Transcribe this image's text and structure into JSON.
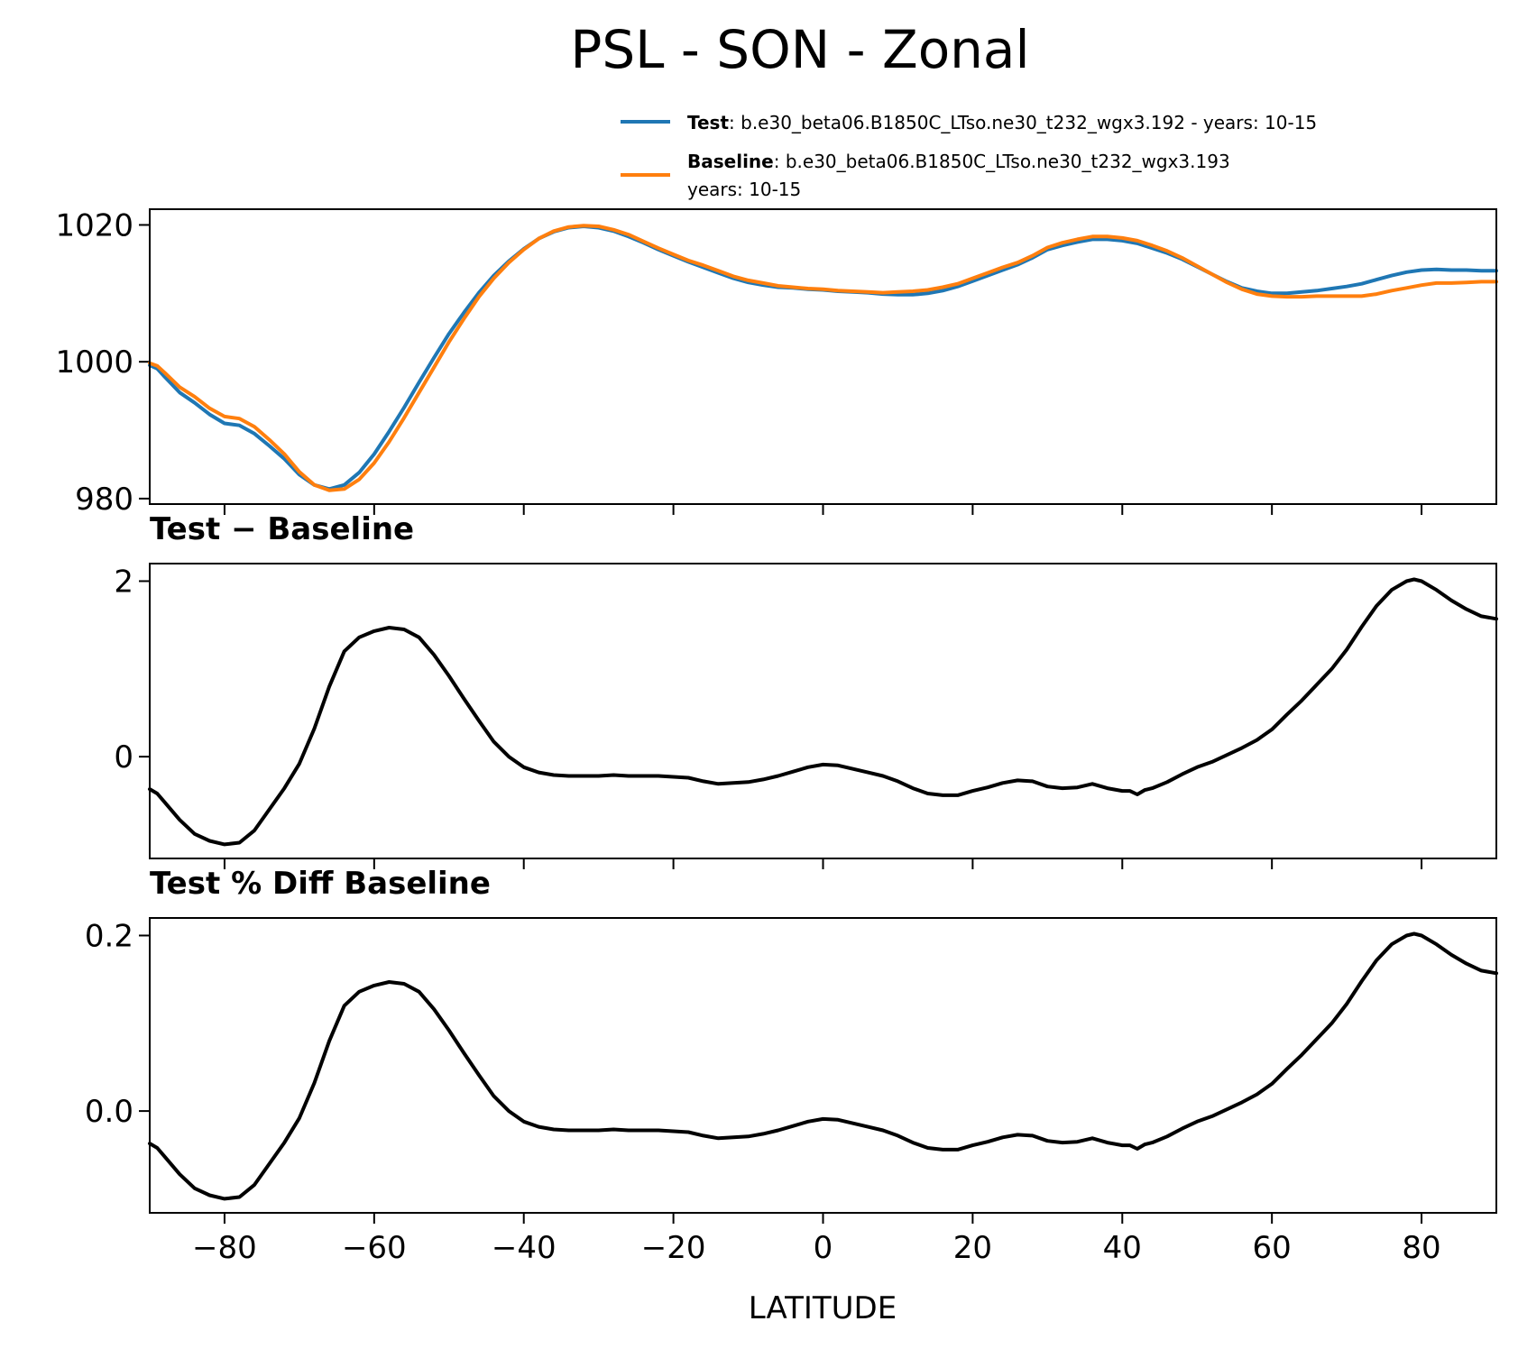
{
  "figure": {
    "title": "PSL - SON - Zonal"
  },
  "legend": {
    "entries": [
      {
        "label": "Test",
        "desc": "b.e30_beta06.B1850C_LTso.ne30_t232_wgx3.192 - years: 10-15",
        "desc2": "",
        "color": "#1f77b4"
      },
      {
        "label": "Baseline",
        "desc": "b.e30_beta06.B1850C_LTso.ne30_t232_wgx3.193",
        "desc2": "years: 10-15",
        "color": "#ff7f0e"
      }
    ]
  },
  "chart_data": [
    {
      "type": "line",
      "title": "",
      "xlabel": "",
      "ylabel": "",
      "xlim": [
        -90,
        90
      ],
      "ylim": [
        979.2,
        1022.3
      ],
      "xticks": [
        -80,
        -60,
        -40,
        -20,
        0,
        20,
        40,
        60,
        80
      ],
      "yticks": [
        980,
        1000,
        1020
      ],
      "ytick_labels": [
        "980",
        "1000",
        "1020"
      ],
      "show_xtick_labels": false,
      "grid": false,
      "legend": "top-right, outside above",
      "series": [
        {
          "name": "Test",
          "color": "#1f77b4",
          "x": [
            -90,
            -89,
            -88,
            -86,
            -84,
            -82,
            -80,
            -78,
            -76,
            -74,
            -72,
            -70,
            -68,
            -66,
            -64,
            -62,
            -60,
            -58,
            -56,
            -54,
            -52,
            -50,
            -48,
            -46,
            -44,
            -42,
            -40,
            -38,
            -36,
            -34,
            -32,
            -30,
            -28,
            -26,
            -24,
            -22,
            -20,
            -18,
            -16,
            -14,
            -12,
            -10,
            -8,
            -6,
            -4,
            -2,
            0,
            2,
            4,
            6,
            8,
            10,
            12,
            14,
            16,
            18,
            20,
            22,
            24,
            26,
            28,
            30,
            32,
            34,
            36,
            38,
            40,
            42,
            44,
            46,
            48,
            50,
            52,
            54,
            56,
            58,
            60,
            62,
            64,
            66,
            68,
            70,
            72,
            74,
            76,
            78,
            80,
            82,
            84,
            86,
            88,
            90
          ],
          "y": [
            999.5,
            999.0,
            997.8,
            995.5,
            994.0,
            992.3,
            991.0,
            990.7,
            989.5,
            987.7,
            985.8,
            983.5,
            982.0,
            981.4,
            982.0,
            983.8,
            986.5,
            989.8,
            993.3,
            997.0,
            1000.6,
            1004.1,
            1007.2,
            1010.1,
            1012.6,
            1014.7,
            1016.5,
            1018.0,
            1019.0,
            1019.6,
            1019.8,
            1019.6,
            1019.1,
            1018.3,
            1017.4,
            1016.4,
            1015.5,
            1014.6,
            1013.8,
            1013.0,
            1012.2,
            1011.6,
            1011.2,
            1010.9,
            1010.8,
            1010.6,
            1010.5,
            1010.3,
            1010.2,
            1010.1,
            1009.9,
            1009.8,
            1009.8,
            1010.0,
            1010.4,
            1011.0,
            1011.8,
            1012.6,
            1013.4,
            1014.2,
            1015.2,
            1016.4,
            1017.0,
            1017.5,
            1017.9,
            1017.9,
            1017.7,
            1017.3,
            1016.6,
            1015.9,
            1015.0,
            1013.9,
            1012.8,
            1011.7,
            1010.8,
            1010.3,
            1010.0,
            1010.0,
            1010.2,
            1010.4,
            1010.7,
            1011.0,
            1011.4,
            1012.0,
            1012.6,
            1013.1,
            1013.4,
            1013.5,
            1013.4,
            1013.4,
            1013.3,
            1013.3
          ]
        },
        {
          "name": "Baseline",
          "color": "#ff7f0e",
          "x": [
            -90,
            -89,
            -88,
            -86,
            -84,
            -82,
            -80,
            -78,
            -76,
            -74,
            -72,
            -70,
            -68,
            -66,
            -64,
            -62,
            -60,
            -58,
            -56,
            -54,
            -52,
            -50,
            -48,
            -46,
            -44,
            -42,
            -40,
            -38,
            -36,
            -34,
            -32,
            -30,
            -28,
            -26,
            -24,
            -22,
            -20,
            -18,
            -16,
            -14,
            -12,
            -10,
            -8,
            -6,
            -4,
            -2,
            0,
            2,
            4,
            6,
            8,
            10,
            12,
            14,
            16,
            18,
            20,
            22,
            24,
            26,
            28,
            30,
            32,
            34,
            36,
            38,
            40,
            42,
            44,
            46,
            48,
            50,
            52,
            54,
            56,
            58,
            60,
            62,
            64,
            66,
            68,
            70,
            72,
            74,
            76,
            78,
            80,
            82,
            84,
            86,
            88,
            90
          ],
          "y": [
            999.8,
            999.4,
            998.4,
            996.3,
            994.9,
            993.2,
            992.0,
            991.7,
            990.5,
            988.6,
            986.5,
            983.9,
            982.0,
            981.2,
            981.4,
            982.8,
            985.2,
            988.3,
            991.8,
            995.5,
            999.2,
            1002.9,
            1006.3,
            1009.5,
            1012.2,
            1014.5,
            1016.4,
            1018.0,
            1019.1,
            1019.7,
            1019.9,
            1019.8,
            1019.3,
            1018.6,
            1017.6,
            1016.6,
            1015.7,
            1014.8,
            1014.1,
            1013.3,
            1012.5,
            1011.9,
            1011.5,
            1011.1,
            1010.9,
            1010.7,
            1010.6,
            1010.4,
            1010.3,
            1010.2,
            1010.1,
            1010.2,
            1010.3,
            1010.5,
            1010.9,
            1011.4,
            1012.2,
            1013.0,
            1013.8,
            1014.5,
            1015.5,
            1016.7,
            1017.4,
            1017.9,
            1018.3,
            1018.3,
            1018.1,
            1017.7,
            1017.0,
            1016.2,
            1015.2,
            1014.0,
            1012.8,
            1011.6,
            1010.6,
            1009.9,
            1009.6,
            1009.5,
            1009.5,
            1009.6,
            1009.6,
            1009.6,
            1009.6,
            1009.9,
            1010.4,
            1010.8,
            1011.2,
            1011.5,
            1011.5,
            1011.6,
            1011.7,
            1011.7
          ]
        }
      ]
    },
    {
      "type": "line",
      "title": "Test − Baseline",
      "xlabel": "",
      "ylabel": "",
      "xlim": [
        -90,
        90
      ],
      "ylim": [
        -1.16,
        2.2
      ],
      "xticks": [
        -80,
        -60,
        -40,
        -20,
        0,
        20,
        40,
        60,
        80
      ],
      "yticks": [
        0,
        2
      ],
      "ytick_labels": [
        "0",
        "2"
      ],
      "show_xtick_labels": false,
      "grid": false,
      "series": [
        {
          "name": "",
          "color": "#000000",
          "x": [
            -90,
            -89,
            -88,
            -86,
            -84,
            -82,
            -80,
            -78,
            -76,
            -74,
            -72,
            -70,
            -68,
            -66,
            -64,
            -62,
            -60,
            -58,
            -56,
            -54,
            -52,
            -50,
            -48,
            -46,
            -44,
            -42,
            -40,
            -38,
            -36,
            -34,
            -32,
            -30,
            -28,
            -26,
            -24,
            -22,
            -20,
            -18,
            -16,
            -14,
            -12,
            -10,
            -8,
            -6,
            -4,
            -2,
            0,
            2,
            4,
            6,
            8,
            10,
            12,
            14,
            16,
            18,
            20,
            22,
            24,
            26,
            28,
            30,
            32,
            34,
            36,
            38,
            40,
            41,
            42,
            43,
            44,
            46,
            48,
            50,
            52,
            54,
            56,
            58,
            60,
            62,
            64,
            66,
            68,
            70,
            72,
            74,
            76,
            78,
            79,
            80,
            82,
            84,
            86,
            88,
            90
          ],
          "y": [
            -0.37,
            -0.42,
            -0.52,
            -0.72,
            -0.88,
            -0.96,
            -1.0,
            -0.98,
            -0.84,
            -0.6,
            -0.36,
            -0.08,
            0.32,
            0.8,
            1.2,
            1.36,
            1.43,
            1.47,
            1.45,
            1.36,
            1.16,
            0.92,
            0.66,
            0.41,
            0.17,
            0.0,
            -0.12,
            -0.18,
            -0.21,
            -0.22,
            -0.22,
            -0.22,
            -0.21,
            -0.22,
            -0.22,
            -0.22,
            -0.23,
            -0.24,
            -0.28,
            -0.31,
            -0.3,
            -0.29,
            -0.26,
            -0.22,
            -0.17,
            -0.12,
            -0.09,
            -0.1,
            -0.14,
            -0.18,
            -0.22,
            -0.28,
            -0.36,
            -0.42,
            -0.44,
            -0.44,
            -0.39,
            -0.35,
            -0.3,
            -0.27,
            -0.28,
            -0.34,
            -0.36,
            -0.35,
            -0.31,
            -0.36,
            -0.39,
            -0.39,
            -0.43,
            -0.38,
            -0.36,
            -0.29,
            -0.2,
            -0.12,
            -0.06,
            0.02,
            0.1,
            0.19,
            0.31,
            0.48,
            0.64,
            0.82,
            1.0,
            1.22,
            1.48,
            1.72,
            1.9,
            2.0,
            2.02,
            2.0,
            1.9,
            1.78,
            1.68,
            1.6,
            1.57
          ]
        }
      ]
    },
    {
      "type": "line",
      "title": "Test % Diff Baseline",
      "xlabel": "LATITUDE",
      "ylabel": "",
      "xlim": [
        -90,
        90
      ],
      "ylim": [
        -0.116,
        0.22
      ],
      "xticks": [
        -80,
        -60,
        -40,
        -20,
        0,
        20,
        40,
        60,
        80
      ],
      "xtick_labels": [
        "−80",
        "−60",
        "−40",
        "−20",
        "0",
        "20",
        "40",
        "60",
        "80"
      ],
      "yticks": [
        0.0,
        0.2
      ],
      "ytick_labels": [
        "0.0",
        "0.2"
      ],
      "show_xtick_labels": true,
      "grid": false,
      "series": [
        {
          "name": "",
          "color": "#000000",
          "x": [
            -90,
            -89,
            -88,
            -86,
            -84,
            -82,
            -80,
            -78,
            -76,
            -74,
            -72,
            -70,
            -68,
            -66,
            -64,
            -62,
            -60,
            -58,
            -56,
            -54,
            -52,
            -50,
            -48,
            -46,
            -44,
            -42,
            -40,
            -38,
            -36,
            -34,
            -32,
            -30,
            -28,
            -26,
            -24,
            -22,
            -20,
            -18,
            -16,
            -14,
            -12,
            -10,
            -8,
            -6,
            -4,
            -2,
            0,
            2,
            4,
            6,
            8,
            10,
            12,
            14,
            16,
            18,
            20,
            22,
            24,
            26,
            28,
            30,
            32,
            34,
            36,
            38,
            40,
            41,
            42,
            43,
            44,
            46,
            48,
            50,
            52,
            54,
            56,
            58,
            60,
            62,
            64,
            66,
            68,
            70,
            72,
            74,
            76,
            78,
            79,
            80,
            82,
            84,
            86,
            88,
            90
          ],
          "y": [
            -0.037,
            -0.042,
            -0.052,
            -0.072,
            -0.088,
            -0.096,
            -0.1,
            -0.098,
            -0.084,
            -0.06,
            -0.036,
            -0.008,
            0.032,
            0.08,
            0.12,
            0.136,
            0.143,
            0.147,
            0.145,
            0.136,
            0.116,
            0.092,
            0.066,
            0.041,
            0.017,
            0.0,
            -0.012,
            -0.018,
            -0.021,
            -0.022,
            -0.022,
            -0.022,
            -0.021,
            -0.022,
            -0.022,
            -0.022,
            -0.023,
            -0.024,
            -0.028,
            -0.031,
            -0.03,
            -0.029,
            -0.026,
            -0.022,
            -0.017,
            -0.012,
            -0.009,
            -0.01,
            -0.014,
            -0.018,
            -0.022,
            -0.028,
            -0.036,
            -0.042,
            -0.044,
            -0.044,
            -0.039,
            -0.035,
            -0.03,
            -0.027,
            -0.028,
            -0.034,
            -0.036,
            -0.035,
            -0.031,
            -0.036,
            -0.039,
            -0.039,
            -0.043,
            -0.038,
            -0.036,
            -0.029,
            -0.02,
            -0.012,
            -0.006,
            0.002,
            0.01,
            0.019,
            0.031,
            0.048,
            0.064,
            0.082,
            0.1,
            0.122,
            0.148,
            0.172,
            0.19,
            0.2,
            0.202,
            0.2,
            0.19,
            0.178,
            0.168,
            0.16,
            0.157
          ]
        }
      ]
    }
  ]
}
